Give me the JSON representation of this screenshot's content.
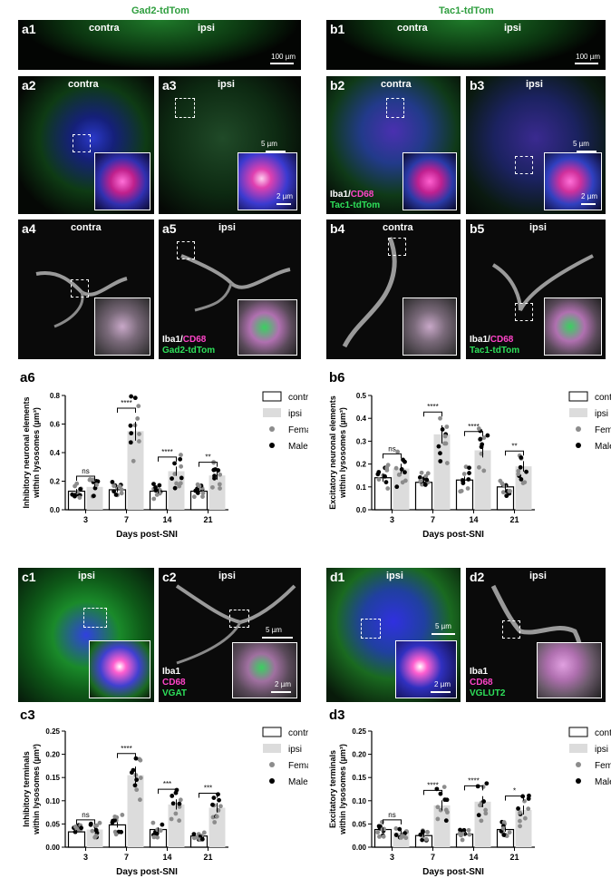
{
  "headers": {
    "gad2": "Gad2-tdTom",
    "tac1": "Tac1-tdTom"
  },
  "panels": {
    "a1": {
      "label": "a1",
      "left": "contra",
      "right": "ipsi",
      "scale": "100 µm"
    },
    "a2": {
      "label": "a2",
      "side": "contra"
    },
    "a3": {
      "label": "a3",
      "side": "ipsi",
      "scale": "5 µm",
      "inset_scale": "2 µm"
    },
    "a4": {
      "label": "a4",
      "side": "contra"
    },
    "a5": {
      "label": "a5",
      "side": "ipsi"
    },
    "b1": {
      "label": "b1",
      "left": "contra",
      "right": "ipsi",
      "scale": "100 µm"
    },
    "b2": {
      "label": "b2",
      "side": "contra"
    },
    "b3": {
      "label": "b3",
      "side": "ipsi",
      "scale": "5 µm",
      "inset_scale": "2 µm"
    },
    "b4": {
      "label": "b4",
      "side": "contra"
    },
    "b5": {
      "label": "b5",
      "side": "ipsi"
    },
    "c1": {
      "label": "c1",
      "side": "ipsi"
    },
    "c2": {
      "label": "c2",
      "side": "ipsi",
      "scale": "5 µm",
      "inset_scale": "2 µm"
    },
    "d1": {
      "label": "d1",
      "side": "ipsi",
      "scale": "5 µm",
      "inset_scale": "2 µm"
    },
    "d2": {
      "label": "d2",
      "side": "ipsi"
    }
  },
  "stains": {
    "iba1": "Iba1",
    "slash": "/",
    "cd68": "CD68",
    "gad2": "Gad2-tdTom",
    "tac1": "Tac1-tdTom",
    "vgat": "VGAT",
    "vglut2": "VGLUT2"
  },
  "colors": {
    "ipsi_bar": "#dcdcdc",
    "female": "#8c8c8c",
    "male": "#000000",
    "tdtom": "#2ee05a",
    "cd68": "#ff44c8",
    "iba1": "#3a55ff"
  },
  "chart_data": [
    {
      "id": "a6",
      "type": "bar",
      "label": "a6",
      "categories": [
        "3",
        "7",
        "14",
        "21"
      ],
      "xlabel": "Days post-SNI",
      "ylabel": [
        "Inhibitory neuronal elements",
        "within lysosomes (µm³)"
      ],
      "ylim": [
        0,
        0.8
      ],
      "yticks": [
        "0.0",
        "0.2",
        "0.4",
        "0.6",
        "0.8"
      ],
      "series": [
        {
          "name": "contra",
          "values": [
            0.13,
            0.14,
            0.13,
            0.13
          ]
        },
        {
          "name": "ipsi",
          "values": [
            0.16,
            0.55,
            0.27,
            0.24
          ]
        }
      ],
      "significance": [
        "ns",
        "****",
        "****",
        "**"
      ],
      "legend": [
        "contra",
        "ipsi",
        "Female",
        "Male"
      ]
    },
    {
      "id": "b6",
      "type": "bar",
      "label": "b6",
      "categories": [
        "3",
        "7",
        "14",
        "21"
      ],
      "xlabel": "Days post-SNI",
      "ylabel": [
        "Excitatory neuronal elements",
        "within lysosomes (µm³)"
      ],
      "ylim": [
        0,
        0.5
      ],
      "yticks": [
        "0.0",
        "0.1",
        "0.2",
        "0.3",
        "0.4",
        "0.5"
      ],
      "series": [
        {
          "name": "contra",
          "values": [
            0.14,
            0.12,
            0.13,
            0.1
          ]
        },
        {
          "name": "ipsi",
          "values": [
            0.18,
            0.33,
            0.26,
            0.19
          ]
        }
      ],
      "significance": [
        "ns",
        "****",
        "****",
        "**"
      ],
      "legend": [
        "contra",
        "ipsi",
        "Female",
        "Male"
      ]
    },
    {
      "id": "c3",
      "type": "bar",
      "label": "c3",
      "categories": [
        "3",
        "7",
        "14",
        "21"
      ],
      "xlabel": "Days post-SNI",
      "ylabel": [
        "Inhibitory terminals",
        "within lysosomes (µm³)"
      ],
      "ylim": [
        0,
        0.25
      ],
      "yticks": [
        "0.00",
        "0.05",
        "0.10",
        "0.15",
        "0.20",
        "0.25"
      ],
      "series": [
        {
          "name": "contra",
          "values": [
            0.033,
            0.048,
            0.038,
            0.024
          ]
        },
        {
          "name": "ipsi",
          "values": [
            0.038,
            0.155,
            0.092,
            0.085
          ]
        }
      ],
      "significance": [
        "ns",
        "****",
        "***",
        "***"
      ],
      "legend": [
        "contra",
        "ipsi",
        "Female",
        "Male"
      ]
    },
    {
      "id": "d3",
      "type": "bar",
      "label": "d3",
      "categories": [
        "3",
        "7",
        "14",
        "21"
      ],
      "xlabel": "Days post-SNI",
      "ylabel": [
        "Excitatory terminals",
        "within lysosomes (µm³)"
      ],
      "ylim": [
        0,
        0.25
      ],
      "yticks": [
        "0.00",
        "0.05",
        "0.10",
        "0.15",
        "0.20",
        "0.25"
      ],
      "series": [
        {
          "name": "contra",
          "values": [
            0.038,
            0.025,
            0.028,
            0.038
          ]
        },
        {
          "name": "ipsi",
          "values": [
            0.032,
            0.09,
            0.098,
            0.08
          ]
        }
      ],
      "significance": [
        "ns",
        "****",
        "****",
        "*"
      ],
      "legend": [
        "contra",
        "ipsi",
        "Female",
        "Male"
      ]
    }
  ]
}
